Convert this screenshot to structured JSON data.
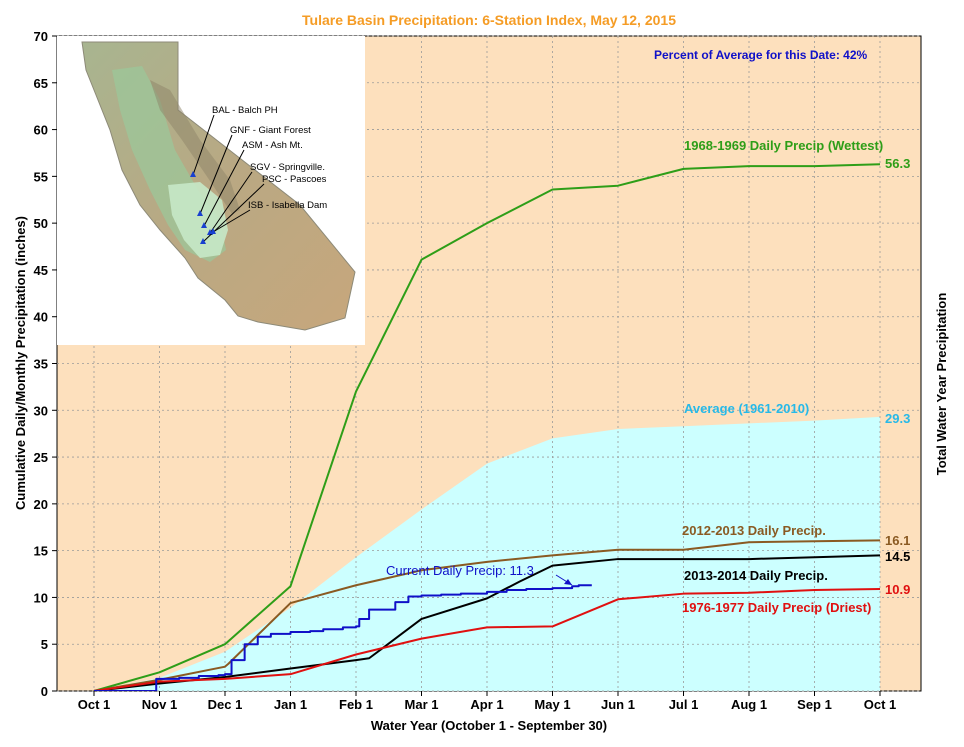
{
  "chart_data": {
    "type": "line",
    "title": "Tulare Basin Precipitation: 6-Station Index, May 12, 2015",
    "xlabel": "Water Year (October 1 - September 30)",
    "ylabel": "Cumulative Daily/Monthly Precipitation (inches)",
    "ylabel_right": "Total Water Year Precipitation",
    "percent_note": "Percent of Average for this Date: 42%",
    "grid": true,
    "ylim": [
      0,
      70
    ],
    "xlim": [
      0,
      12
    ],
    "categories": [
      "Oct 1",
      "Nov 1",
      "Dec 1",
      "Jan 1",
      "Feb 1",
      "Mar 1",
      "Apr 1",
      "May 1",
      "Jun 1",
      "Jul 1",
      "Aug 1",
      "Sep 1",
      "Oct 1"
    ],
    "yticks": [
      "0",
      "5",
      "10",
      "15",
      "20",
      "25",
      "30",
      "35",
      "40",
      "45",
      "50",
      "55",
      "60",
      "65",
      "70"
    ],
    "colors": {
      "plot_bg": "#fde0bd",
      "average": "#ccffff",
      "average_label": "#27b9e8",
      "wettest": "#2e9e18",
      "y2012": "#8a5a22",
      "y2013": "#000000",
      "driest": "#e01010",
      "current": "#1010c8",
      "title": "#f59c25",
      "note": "#1010c8"
    },
    "series": [
      {
        "key": "average",
        "name": "Average (1961-2010)",
        "end_label": "29.3",
        "x": [
          0,
          1,
          2,
          3,
          4,
          5,
          6,
          7,
          8,
          9,
          10,
          11,
          12
        ],
        "values": [
          0,
          1.4,
          4.2,
          8.9,
          14.3,
          19.4,
          24.3,
          27.0,
          28.0,
          28.3,
          28.6,
          28.9,
          29.3
        ]
      },
      {
        "key": "wettest",
        "name": "1968-1969 Daily Precip (Wettest)",
        "end_label": "56.3",
        "x": [
          0,
          1,
          2,
          3,
          4,
          5,
          6,
          7,
          8,
          9,
          10,
          11,
          12
        ],
        "values": [
          0,
          2.0,
          5.0,
          11.2,
          32.0,
          46.1,
          50.0,
          53.6,
          54.0,
          55.8,
          56.1,
          56.1,
          56.3
        ]
      },
      {
        "key": "y2012",
        "name": "2012-2013 Daily Precip.",
        "end_label": "16.1",
        "x": [
          0,
          1,
          2,
          2.05,
          3,
          4,
          5,
          6,
          7,
          8,
          9,
          10,
          11,
          12
        ],
        "values": [
          0,
          1.2,
          2.6,
          2.9,
          9.4,
          11.3,
          12.9,
          13.8,
          14.5,
          15.1,
          15.1,
          15.9,
          16.0,
          16.1
        ]
      },
      {
        "key": "y2013",
        "name": "2013-2014 Daily Precip.",
        "end_label": "14.5",
        "x": [
          0,
          1,
          2,
          3,
          4,
          4.2,
          5,
          6,
          6.5,
          7,
          8,
          9,
          10,
          11,
          12
        ],
        "values": [
          0,
          0.8,
          1.5,
          2.4,
          3.3,
          3.5,
          7.7,
          9.9,
          11.7,
          13.4,
          14.1,
          14.1,
          14.1,
          14.3,
          14.5
        ]
      },
      {
        "key": "driest",
        "name": "1976-1977 Daily Precip (Driest)",
        "end_label": "10.9",
        "x": [
          0,
          1,
          2,
          3,
          4,
          5,
          6,
          7,
          8,
          9,
          10,
          11,
          12
        ],
        "values": [
          0,
          1.0,
          1.3,
          1.8,
          3.9,
          5.6,
          6.8,
          6.9,
          9.8,
          10.4,
          10.5,
          10.8,
          10.9
        ]
      },
      {
        "key": "current",
        "name": "Current Daily Precip: 11.3",
        "end_label": "",
        "step": true,
        "x": [
          0,
          0.9,
          0.95,
          1.3,
          1.6,
          1.9,
          2.0,
          2.1,
          2.3,
          2.5,
          2.7,
          3.0,
          3.3,
          3.5,
          3.8,
          4.0,
          4.05,
          4.2,
          4.4,
          4.6,
          4.8,
          5.0,
          5.3,
          5.6,
          6.0,
          6.3,
          6.6,
          7.0,
          7.3,
          7.4,
          7.6
        ],
        "values": [
          0,
          0,
          1.3,
          1.4,
          1.6,
          1.7,
          1.8,
          3.3,
          5.0,
          5.8,
          6.1,
          6.3,
          6.4,
          6.6,
          6.8,
          6.9,
          7.7,
          8.7,
          8.7,
          9.5,
          10.1,
          10.2,
          10.3,
          10.4,
          10.6,
          10.8,
          10.9,
          11.0,
          11.2,
          11.3,
          11.3
        ]
      }
    ],
    "inset": {
      "stations": [
        "BAL - Balch PH",
        "GNF - Giant Forest",
        "ASM - Ash Mt.",
        "SGV - Springville.",
        "PSC - Pascoes",
        "ISB - Isabella Dam"
      ]
    }
  }
}
